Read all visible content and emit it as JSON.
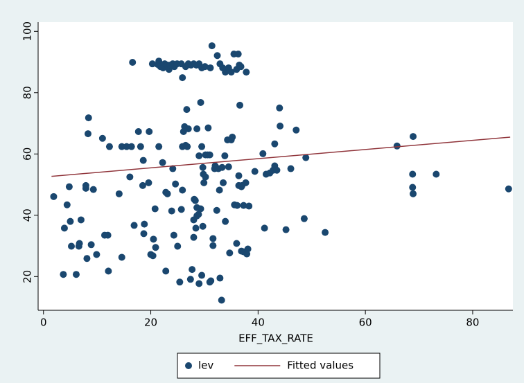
{
  "chart_data": {
    "type": "scatter",
    "x_label": "EFF_TAX_RATE",
    "xlim": [
      -1,
      87.5
    ],
    "ylim": [
      9,
      103
    ],
    "xticks": [
      0,
      20,
      40,
      60,
      80
    ],
    "yticks": [
      20,
      40,
      60,
      80,
      100
    ],
    "grid": false,
    "legend": "bottom",
    "series": [
      {
        "name": "lev",
        "type": "scatter",
        "color": "#1a476f",
        "x": [
          1.9,
          3.7,
          3.9,
          4.4,
          4.8,
          5.0,
          5.2,
          6.1,
          6.6,
          6.7,
          7.0,
          7.9,
          7.9,
          8.1,
          8.4,
          8.3,
          8.9,
          9.3,
          9.9,
          11.0,
          11.4,
          12.0,
          12.3,
          12.1,
          14.1,
          14.6,
          14.6,
          15.5,
          16.1,
          16.6,
          16.9,
          16.4,
          17.7,
          18.1,
          18.5,
          18.6,
          18.7,
          18.8,
          19.6,
          19.7,
          20.0,
          20.4,
          20.5,
          20.9,
          20.8,
          21.5,
          22.2,
          22.8,
          23.1,
          22.8,
          23.9,
          24.1,
          24.3,
          24.6,
          25.0,
          25.4,
          25.7,
          25.9,
          25.9,
          26.1,
          26.3,
          26.5,
          26.7,
          26.8,
          27.0,
          27.4,
          27.7,
          28.0,
          28.0,
          28.1,
          28.3,
          28.6,
          28.4,
          28.6,
          28.6,
          28.9,
          29.0,
          29.0,
          29.3,
          29.3,
          29.5,
          29.5,
          29.7,
          29.7,
          29.8,
          29.9,
          30.2,
          30.2,
          30.6,
          30.7,
          31.0,
          31.0,
          31.2,
          31.6,
          31.6,
          31.9,
          32.0,
          32.3,
          32.6,
          32.8,
          32.9,
          33.2,
          33.3,
          33.5,
          33.8,
          33.9,
          34.3,
          34.5,
          34.7,
          35.0,
          35.2,
          35.6,
          36.0,
          36.1,
          36.4,
          36.4,
          36.6,
          36.9,
          36.9,
          37.0,
          37.3,
          37.3,
          37.7,
          37.9,
          38.1,
          38.3,
          39.4,
          40.9,
          41.2,
          41.5,
          42.2,
          42.8,
          43.1,
          43.1,
          43.5,
          44.0,
          44.1,
          45.2,
          46.1,
          47.1,
          48.9,
          48.6,
          52.5,
          65.9,
          68.9,
          68.8,
          68.8,
          68.9,
          73.2,
          86.7,
          20.3,
          21.3,
          21.5,
          21.8,
          22.3,
          22.6,
          23.1,
          23.4,
          23.6,
          24.1,
          24.4,
          24.9,
          25.7,
          25.9,
          26.5,
          27.0,
          27.5,
          28.0,
          28.5,
          29.0,
          29.5,
          30.1,
          31.1,
          31.4,
          32.4,
          32.9,
          33.4,
          33.9,
          34.5,
          35.0,
          35.5,
          36.0,
          36.3,
          36.5,
          36.8,
          37.8
        ],
        "values": [
          46.1,
          20.7,
          35.8,
          43.4,
          49.3,
          38.0,
          29.9,
          20.7,
          29.9,
          30.8,
          38.5,
          49.7,
          48.8,
          25.9,
          71.8,
          66.6,
          30.4,
          48.4,
          27.2,
          65.1,
          33.5,
          33.5,
          62.4,
          21.8,
          47.0,
          62.4,
          26.3,
          62.4,
          52.5,
          89.9,
          36.7,
          62.4,
          67.3,
          62.4,
          49.7,
          57.9,
          34.0,
          37.1,
          50.6,
          67.3,
          27.2,
          26.8,
          32.2,
          29.5,
          42.1,
          62.4,
          57.2,
          47.5,
          47.0,
          21.8,
          41.4,
          55.2,
          33.5,
          50.2,
          29.9,
          18.2,
          41.9,
          62.4,
          48.2,
          67.3,
          68.9,
          62.8,
          74.5,
          62.4,
          68.2,
          19.1,
          22.3,
          38.5,
          32.8,
          45.2,
          44.8,
          42.5,
          35.8,
          68.2,
          39.8,
          40.3,
          17.7,
          59.4,
          76.8,
          42.1,
          20.4,
          62.4,
          36.4,
          55.6,
          53.4,
          50.6,
          52.5,
          59.7,
          59.7,
          68.5,
          18.2,
          59.7,
          18.6,
          32.4,
          30.1,
          55.2,
          56.1,
          41.6,
          55.2,
          48.2,
          19.5,
          12.3,
          55.6,
          50.6,
          59.4,
          38.0,
          64.6,
          55.8,
          27.7,
          64.6,
          65.5,
          43.4,
          30.8,
          43.2,
          49.7,
          52.9,
          75.9,
          49.3,
          28.3,
          49.7,
          43.2,
          28.1,
          50.6,
          27.4,
          29.0,
          43.0,
          54.3,
          60.1,
          35.8,
          53.4,
          53.8,
          54.7,
          63.3,
          56.1,
          54.7,
          75.0,
          69.1,
          35.3,
          55.2,
          67.8,
          58.8,
          38.9,
          34.4,
          62.6,
          65.7,
          53.4,
          49.1,
          47.0,
          53.4,
          48.6,
          89.4,
          89.2,
          90.3,
          88.5,
          88.1,
          89.4,
          89.0,
          87.6,
          89.0,
          89.4,
          88.5,
          89.4,
          89.4,
          84.9,
          88.5,
          89.4,
          89.0,
          89.4,
          89.0,
          89.4,
          88.1,
          88.5,
          88.1,
          95.3,
          92.1,
          89.4,
          88.1,
          86.7,
          88.1,
          86.7,
          92.6,
          87.6,
          92.6,
          89.0,
          88.5,
          86.7
        ]
      },
      {
        "name": "Fitted values",
        "type": "line",
        "color": "#90353b",
        "x": [
          1.5,
          87
        ],
        "values": [
          52.7,
          65.5
        ]
      }
    ]
  }
}
